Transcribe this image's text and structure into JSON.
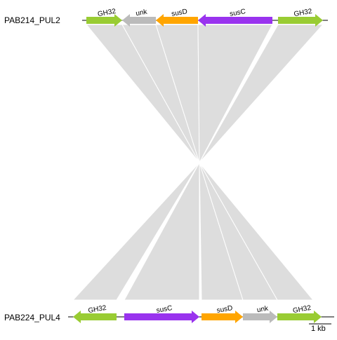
{
  "tracks": [
    {
      "name": "PAB214_PUL2",
      "genes": [
        {
          "label": "GH32",
          "color": "#99cc33",
          "strand": "+"
        },
        {
          "label": "unk",
          "color": "#bbbbbb",
          "strand": "-"
        },
        {
          "label": "susD",
          "color": "#ffa500",
          "strand": "-"
        },
        {
          "label": "susC",
          "color": "#9933ee",
          "strand": "-"
        },
        {
          "label": "GH32",
          "color": "#99cc33",
          "strand": "+"
        }
      ]
    },
    {
      "name": "PAB224_PUL4",
      "genes": [
        {
          "label": "GH32",
          "color": "#99cc33",
          "strand": "-"
        },
        {
          "label": "susC",
          "color": "#9933ee",
          "strand": "+"
        },
        {
          "label": "susD",
          "color": "#ffa500",
          "strand": "+"
        },
        {
          "label": "unk",
          "color": "#bbbbbb",
          "strand": "+"
        },
        {
          "label": "GH32",
          "color": "#99cc33",
          "strand": "+"
        }
      ]
    }
  ],
  "scale": {
    "label": "1 kb"
  },
  "colors": {
    "link": "#dddddd",
    "line": "#000000"
  }
}
